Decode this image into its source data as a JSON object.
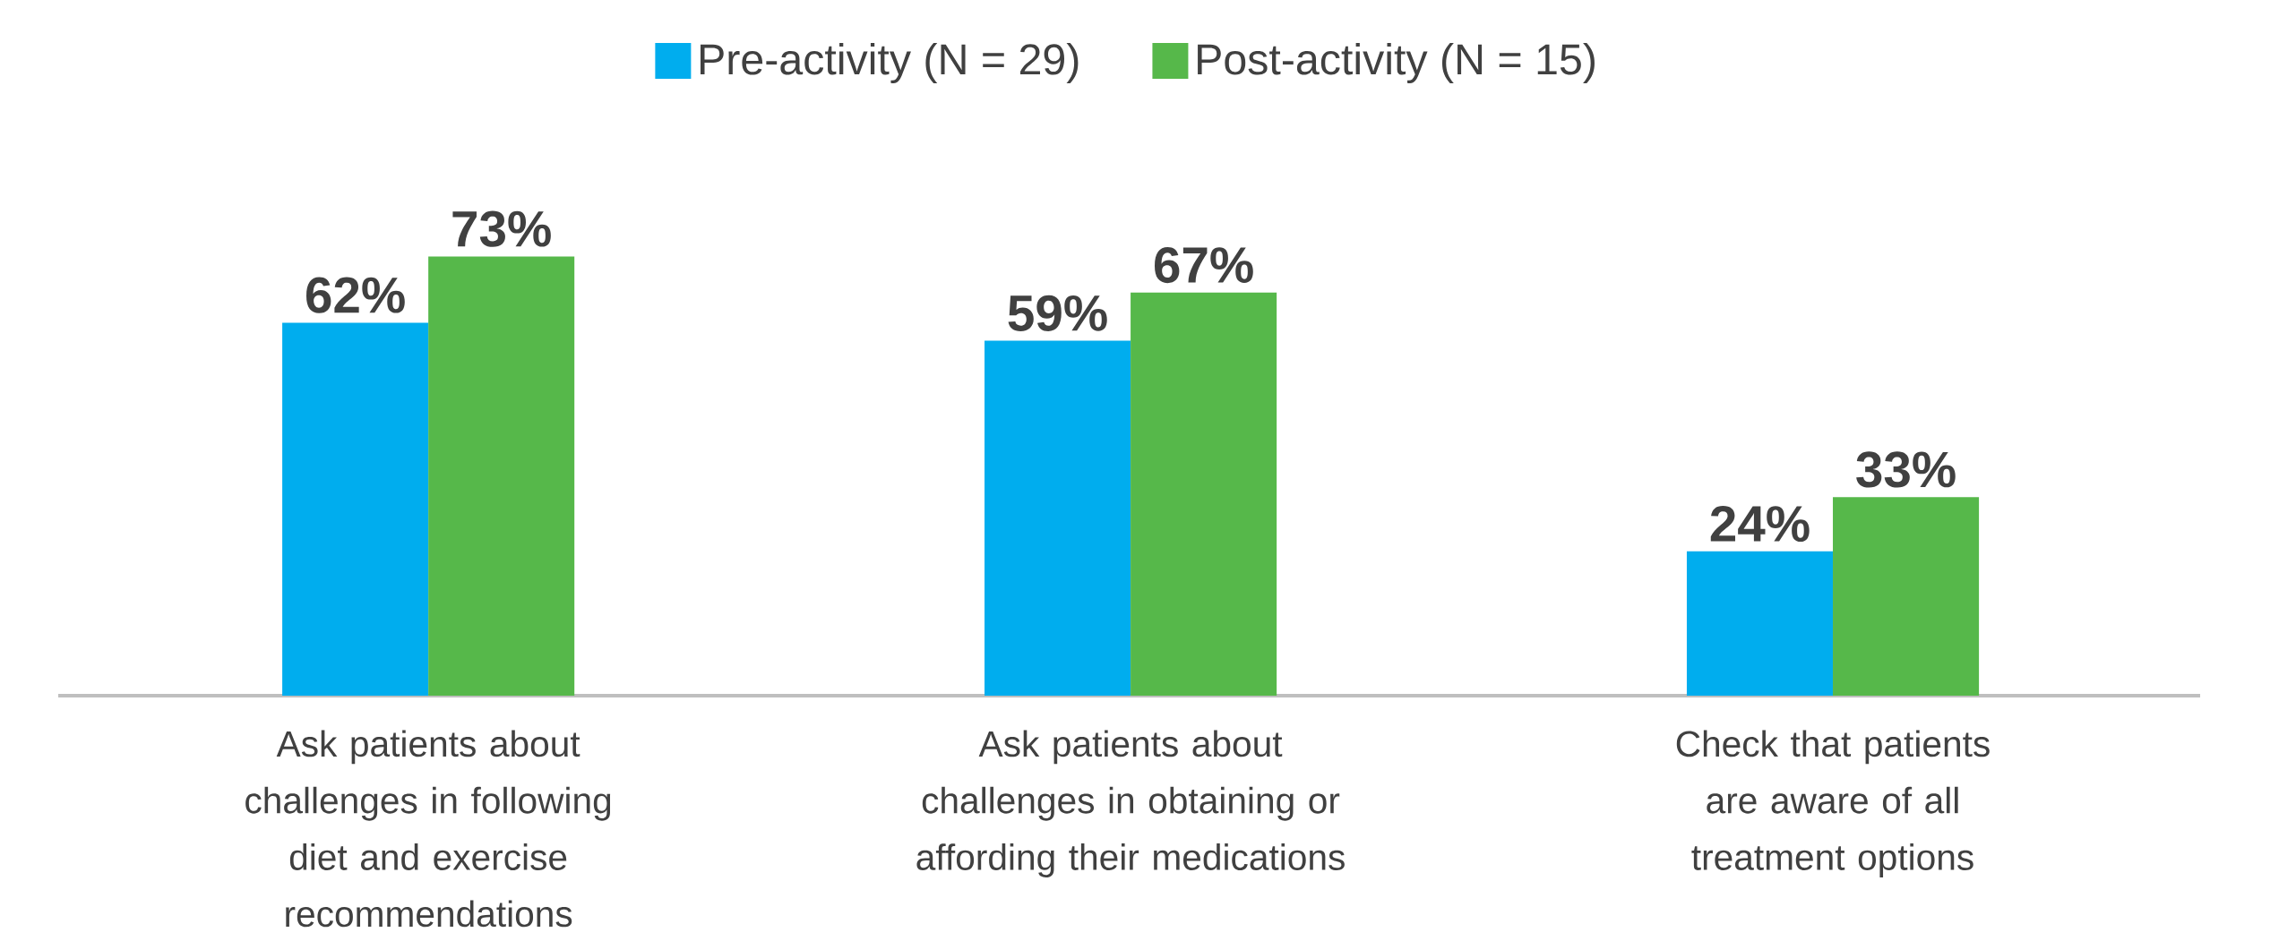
{
  "chart_data": {
    "type": "bar",
    "legend": "top",
    "categories": [
      "Ask patients about challenges in following diet and exercise recommendations",
      "Ask patients about challenges in obtaining or affording their medications",
      "Check that patients are aware of all treatment options"
    ],
    "series": [
      {
        "name": "Pre-activity (N = 29)",
        "color": "#00adee",
        "values": [
          62,
          59,
          24
        ],
        "value_labels": [
          "62%",
          "59%",
          "24%"
        ]
      },
      {
        "name": "Post-activity (N = 15)",
        "color": "#56b84a",
        "values": [
          73,
          67,
          33
        ],
        "value_labels": [
          "73%",
          "67%",
          "33%"
        ]
      }
    ]
  }
}
